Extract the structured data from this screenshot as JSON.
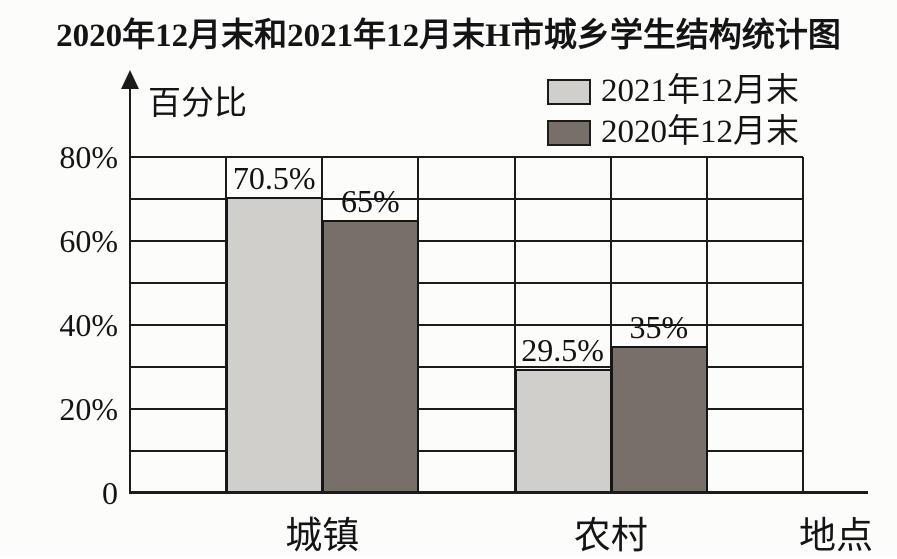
{
  "title": "2020年12月末和2021年12月末H市城乡学生结构统计图",
  "chart_data": {
    "type": "bar",
    "title": "2020年12月末和2021年12月末H市城乡学生结构统计图",
    "ylabel": "百分比",
    "xlabel": "地点",
    "categories": [
      "城镇",
      "农村"
    ],
    "series": [
      {
        "name": "2021年12月末",
        "values": [
          70.5,
          29.5
        ],
        "data_labels": [
          "70.5%",
          "29.5%"
        ],
        "color": "#d1cfcb"
      },
      {
        "name": "2020年12月末",
        "values": [
          65,
          35
        ],
        "data_labels": [
          "65%",
          "35%"
        ],
        "color": "#767069"
      }
    ],
    "ylim": [
      0,
      80
    ],
    "grid": true,
    "grid_step": 10,
    "yticks": [
      {
        "label": "80%",
        "value": 80
      },
      {
        "label": "60%",
        "value": 60
      },
      {
        "label": "40%",
        "value": 40
      },
      {
        "label": "20%",
        "value": 20
      },
      {
        "label": "0",
        "value": 0
      }
    ],
    "legend_position": "top-right",
    "line_color": "#1b1b1b"
  }
}
